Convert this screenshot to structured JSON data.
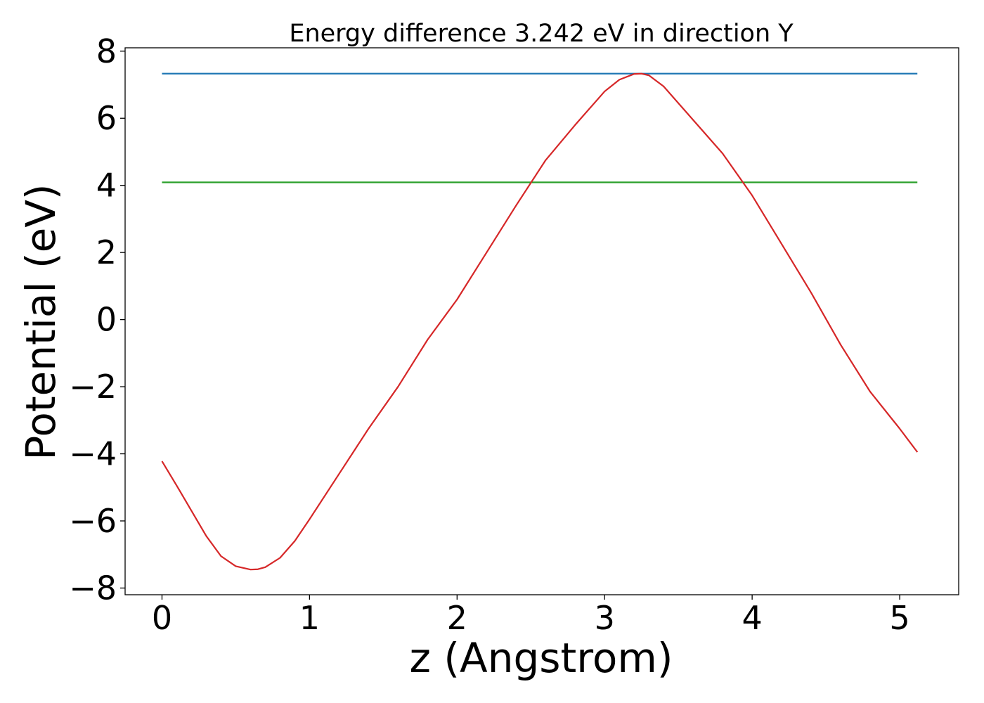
{
  "chart_data": {
    "type": "line",
    "title": "Energy difference 3.242 eV in direction Y",
    "xlabel": "z (Angstrom)",
    "ylabel": "Potential (eV)",
    "xlim": [
      -0.25,
      5.4
    ],
    "ylim": [
      -8.2,
      8.1
    ],
    "xticks": [
      0,
      1,
      2,
      3,
      4,
      5
    ],
    "yticks": [
      -8,
      -6,
      -4,
      -2,
      0,
      2,
      4,
      6,
      8
    ],
    "xtick_labels": [
      "0",
      "1",
      "2",
      "3",
      "4",
      "5"
    ],
    "ytick_labels": [
      "−8",
      "−6",
      "−4",
      "−2",
      "0",
      "2",
      "4",
      "6",
      "8"
    ],
    "grid": false,
    "legend": "none",
    "series": [
      {
        "color": "#1f77b4",
        "x": [
          0,
          5.12
        ],
        "y": [
          7.33,
          7.33
        ]
      },
      {
        "color": "#2ca02c",
        "x": [
          0,
          5.12
        ],
        "y": [
          4.09,
          4.09
        ]
      },
      {
        "color": "#d62728",
        "x": [
          0,
          0.1,
          0.2,
          0.3,
          0.4,
          0.5,
          0.6,
          0.65,
          0.7,
          0.8,
          0.9,
          1.0,
          1.2,
          1.4,
          1.6,
          1.8,
          2.0,
          2.2,
          2.4,
          2.6,
          2.8,
          3.0,
          3.1,
          3.2,
          3.25,
          3.3,
          3.4,
          3.6,
          3.8,
          4.0,
          4.2,
          4.4,
          4.6,
          4.8,
          5.0,
          5.12
        ],
        "y": [
          -4.22,
          -4.95,
          -5.7,
          -6.45,
          -7.05,
          -7.35,
          -7.45,
          -7.44,
          -7.38,
          -7.1,
          -6.6,
          -5.95,
          -4.6,
          -3.25,
          -2.0,
          -0.6,
          0.6,
          2.0,
          3.4,
          4.75,
          5.8,
          6.8,
          7.15,
          7.32,
          7.33,
          7.28,
          6.95,
          5.95,
          4.95,
          3.7,
          2.25,
          0.8,
          -0.75,
          -2.15,
          -3.25,
          -3.95
        ]
      }
    ]
  }
}
